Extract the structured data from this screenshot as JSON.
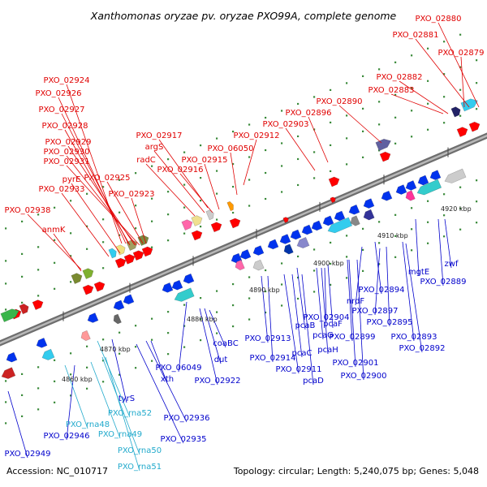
{
  "title": "Xanthomonas oryzae pv. oryzae PXO99A, complete genome",
  "footer": {
    "accession": "Accession: NC_010717",
    "summary": "Topology: circular; Length: 5,240,075 bp; Genes: 5,048"
  },
  "colors": {
    "forward_label": "#e00000",
    "reverse_label": "#0000cc",
    "rna_label": "#22aacc",
    "backbone": "#8a8a8a",
    "tick": "#3a8a3a"
  },
  "ticks": [
    {
      "label": "4860 kbp"
    },
    {
      "label": "4870 kbp"
    },
    {
      "label": "4880 kbp"
    },
    {
      "label": "4890 kbp"
    },
    {
      "label": "4900 kbp"
    },
    {
      "label": "4910 kbp"
    },
    {
      "label": "4920 kbp"
    }
  ],
  "forward_labels": [
    "PXO_02880",
    "PXO_02881",
    "PXO_02879",
    "PXO_02882",
    "PXO_02883",
    "PXO_02890",
    "PXO_02896",
    "PXO_02903",
    "PXO_02912",
    "PXO_06050",
    "PXO_02917",
    "argS",
    "radC",
    "PXO_02915",
    "PXO_02916",
    "PXO_02924",
    "PXO_02926",
    "PXO_02927",
    "PXO_02928",
    "PXO_02929",
    "PXO_02930",
    "PXO_02931",
    "pyrE",
    "PXO_02925",
    "PXO_02933",
    "PXO_02923",
    "PXO_02938",
    "anmK"
  ],
  "reverse_labels": [
    "zwf",
    "PXO_02889",
    "mgtE",
    "PXO_02894",
    "nrdF",
    "PXO_02897",
    "PXO_02895",
    "PXO_02893",
    "PXO_02892",
    "PXO_02904",
    "pcaF",
    "pcaB",
    "pcaG",
    "pcaH",
    "PXO_02899",
    "PXO_02901",
    "PXO_02900",
    "PXO_02913",
    "PXO_02914",
    "pcaC",
    "PXO_02911",
    "pcaD",
    "coaBC",
    "dut",
    "PXO_06049",
    "PXO_02922",
    "xth",
    "tyrS",
    "PXO_02936",
    "PXO_02935",
    "PXO_02946",
    "PXO_02949"
  ],
  "rna_labels": [
    "PXO_rna52",
    "PXO_rna48",
    "PXO_rna49",
    "PXO_rna50",
    "PXO_rna51"
  ]
}
